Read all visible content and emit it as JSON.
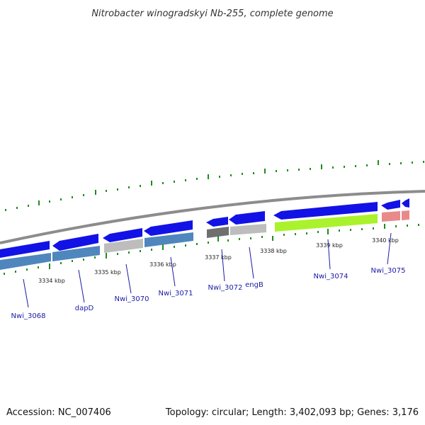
{
  "title": "Nitrobacter winogradskyi Nb-255, complete genome",
  "footer": {
    "accession": "Accession: NC_007406",
    "topology": "Topology: circular; Length: 3,402,093 bp; Genes: 3,176"
  },
  "kbp_labels": [
    "3334 kbp",
    "3335 kbp",
    "3336 kbp",
    "3337 kbp",
    "3338 kbp",
    "3339 kbp",
    "3340 kbp"
  ],
  "gene_labels": [
    "Nwi_3068",
    "dapD",
    "Nwi_3070",
    "Nwi_3071",
    "Nwi_3072",
    "engB",
    "Nwi_3074",
    "Nwi_3075"
  ],
  "colors": {
    "arrow": "#1212e6",
    "steelblue": "#4f86bd",
    "gray": "#bdbdbd",
    "darkgray": "#6f6f6f",
    "lime": "#aaf22b",
    "salmon": "#e88a8a",
    "backbone": "#8c8c8c",
    "tick": "#1e8c1e",
    "label": "#1a1aa6"
  }
}
